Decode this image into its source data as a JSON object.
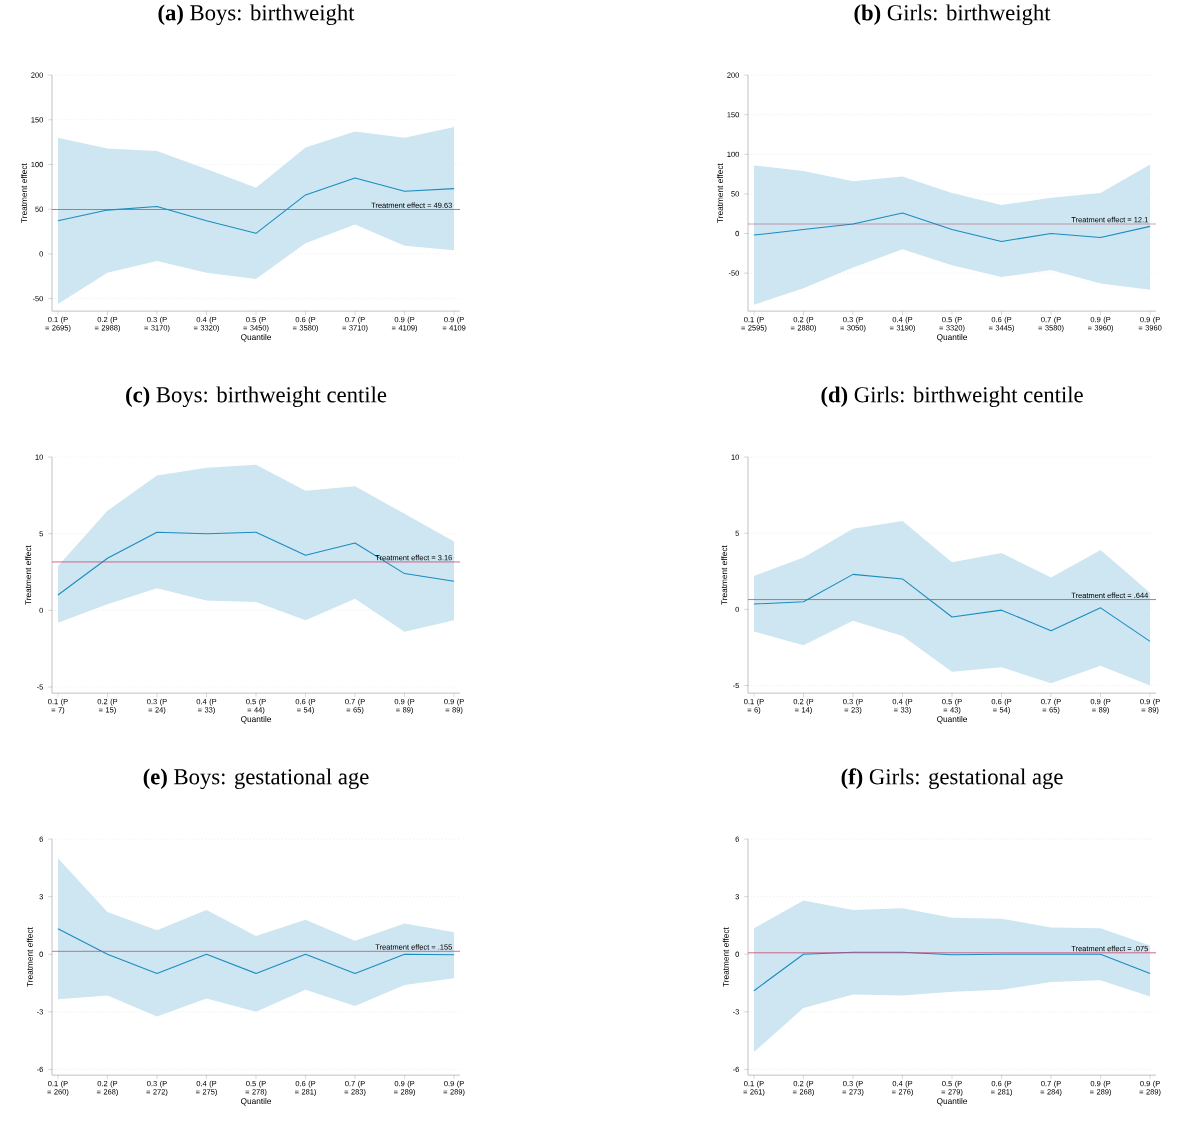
{
  "chart_data": [
    {
      "type": "line",
      "title": "**(a)** Boys: birthweight",
      "xlabel": "Quantile",
      "ylabel": "Treatment effect",
      "grid": "y",
      "ylim": [
        -64,
        200
      ],
      "yticks": [
        -50,
        0,
        50,
        100,
        150,
        200
      ],
      "categories": [
        "0.1 (P = 2695)",
        "0.2 (P = 2988)",
        "0.3 (P = 3170)",
        "0.4 (P = 3320)",
        "0.5 (P = 3450)",
        "0.6 (P = 3580)",
        "0.7 (P = 3710)",
        "0.9 (P = 4109)",
        "0.9 (P = 4109"
      ],
      "series": [
        {
          "color": "#1a8cc0",
          "values": [
            37,
            49,
            53,
            37,
            23,
            66,
            85,
            70,
            73
          ],
          "lower": [
            -56,
            -21,
            -8,
            -21,
            -28,
            12,
            33,
            9,
            4
          ],
          "upper": [
            130,
            118,
            115,
            95,
            74,
            119,
            137,
            130,
            142
          ]
        }
      ],
      "ref_lines": [
        {
          "axis": "y",
          "value": 49.63,
          "label": "Treatment effect = 49.63",
          "color": "#d0406e"
        }
      ]
    },
    {
      "type": "line",
      "title": "**(b)** Girls: birthweight",
      "xlabel": "Quantile",
      "ylabel": "Treatment effect",
      "grid": "y",
      "ylim": [
        -98,
        200
      ],
      "yticks": [
        -50,
        0,
        50,
        100,
        150,
        200
      ],
      "categories": [
        "0.1 (P = 2595)",
        "0.2 (P = 2880)",
        "0.3 (P = 3050)",
        "0.4 (P = 3190)",
        "0.5 (P = 3320)",
        "0.6 (P = 3445)",
        "0.7 (P = 3580)",
        "0.9 (P = 3960)",
        "0.9 (P = 3960"
      ],
      "series": [
        {
          "color": "#1a8cc0",
          "values": [
            -2,
            5,
            12,
            26,
            5,
            -10,
            0,
            -5,
            9
          ],
          "lower": [
            -90,
            -69,
            -43,
            -20,
            -40,
            -55,
            -46,
            -63,
            -71
          ],
          "upper": [
            86,
            79,
            66,
            72,
            51,
            36,
            45,
            51,
            87
          ]
        }
      ],
      "ref_lines": [
        {
          "axis": "y",
          "value": 12.1,
          "label": "Treatment effect = 12.1",
          "color": "#a8405e"
        }
      ]
    },
    {
      "type": "line",
      "title": "**(c)** Boys: birthweight centile",
      "xlabel": "Quantile",
      "ylabel": "Treatment effect",
      "grid": "y",
      "ylim": [
        -5.4,
        10
      ],
      "yticks": [
        -5,
        0,
        5,
        10
      ],
      "categories": [
        "0.1 (P = 7)",
        "0.2 (P = 15)",
        "0.3 (P = 24)",
        "0.4 (P = 33)",
        "0.5 (P = 44)",
        "0.6 (P = 54)",
        "0.7 (P = 65)",
        "0.9 (P = 89)",
        "0.9 (P = 89)"
      ],
      "series": [
        {
          "color": "#1a8cc0",
          "values": [
            1.0,
            3.4,
            5.1,
            5.0,
            5.1,
            3.6,
            4.4,
            2.4,
            1.9
          ],
          "lower": [
            -0.8,
            0.4,
            1.45,
            0.65,
            0.55,
            -0.65,
            0.75,
            -1.4,
            -0.65
          ],
          "upper": [
            2.9,
            6.5,
            8.8,
            9.3,
            9.5,
            7.8,
            8.1,
            6.3,
            4.5
          ]
        }
      ],
      "ref_lines": [
        {
          "axis": "y",
          "value": 3.16,
          "label": "Treatment effect = 3.16",
          "color": "#d0406e"
        }
      ]
    },
    {
      "type": "line",
      "title": "**(d)** Girls: birthweight centile",
      "xlabel": "Quantile",
      "ylabel": "Treatment effect",
      "grid": "y",
      "ylim": [
        -5.5,
        10
      ],
      "yticks": [
        -5,
        0,
        5,
        10
      ],
      "categories": [
        "0.1 (P = 6)",
        "0.2 (P = 14)",
        "0.3 (P = 23)",
        "0.4 (P = 33)",
        "0.5 (P = 43)",
        "0.6 (P = 54)",
        "0.7 (P = 65)",
        "0.9 (P = 89)",
        "0.9 (P = 89)"
      ],
      "series": [
        {
          "color": "#1a8cc0",
          "values": [
            0.35,
            0.5,
            2.3,
            2.0,
            -0.5,
            -0.05,
            -1.4,
            0.1,
            -2.1
          ],
          "lower": [
            -1.45,
            -2.35,
            -0.75,
            -1.75,
            -4.1,
            -3.8,
            -4.85,
            -3.7,
            -5.0
          ],
          "upper": [
            2.2,
            3.4,
            5.3,
            5.8,
            3.1,
            3.7,
            2.1,
            3.9,
            1.1
          ]
        }
      ],
      "ref_lines": [
        {
          "axis": "y",
          "value": 0.644,
          "label": "Treatment effect = .644",
          "color": "#d0406e"
        }
      ]
    },
    {
      "type": "line",
      "title": "**(e)** Boys: gestational age",
      "xlabel": "Quantile",
      "ylabel": "Treatment effect",
      "grid": "y",
      "ylim": [
        -6.3,
        6
      ],
      "yticks": [
        -6,
        -3,
        0,
        3,
        6
      ],
      "categories": [
        "0.1 (P = 260)",
        "0.2 (P = 268)",
        "0.3 (P = 272)",
        "0.4 (P = 275)",
        "0.5 (P = 278)",
        "0.6 (P = 281)",
        "0.7 (P = 283)",
        "0.9 (P = 289)",
        "0.9 (P = 289)"
      ],
      "series": [
        {
          "color": "#1a8cc0",
          "values": [
            1.33,
            0,
            -1,
            0,
            -1,
            0,
            -1,
            0,
            -0.03
          ],
          "lower": [
            -2.35,
            -2.15,
            -3.25,
            -2.3,
            -3.0,
            -1.85,
            -2.7,
            -1.6,
            -1.25
          ],
          "upper": [
            5.0,
            2.2,
            1.25,
            2.3,
            0.95,
            1.8,
            0.7,
            1.6,
            1.15
          ]
        }
      ],
      "ref_lines": [
        {
          "axis": "y",
          "value": 0.155,
          "label": "Treatment effect = .155",
          "color": "#d0406e"
        }
      ]
    },
    {
      "type": "line",
      "title": "**(f)** Girls: gestational age",
      "xlabel": "Quantile",
      "ylabel": "Treatment effect",
      "grid": "y",
      "ylim": [
        -6.3,
        6
      ],
      "yticks": [
        -6,
        -3,
        0,
        3,
        6
      ],
      "categories": [
        "0.1 (P = 261)",
        "0.2 (P = 268)",
        "0.3 (P = 273)",
        "0.4 (P = 276)",
        "0.5 (P = 279)",
        "0.6 (P = 281)",
        "0.7 (P = 284)",
        "0.9 (P = 289)",
        "0.9 (P = 289)"
      ],
      "series": [
        {
          "color": "#1a8cc0",
          "values": [
            -1.9,
            0,
            0.1,
            0.1,
            -0.03,
            0,
            0,
            0,
            -1.0
          ],
          "lower": [
            -5.1,
            -2.8,
            -2.1,
            -2.15,
            -1.95,
            -1.85,
            -1.45,
            -1.35,
            -2.2
          ],
          "upper": [
            1.35,
            2.8,
            2.3,
            2.4,
            1.9,
            1.85,
            1.4,
            1.35,
            0.45
          ]
        }
      ],
      "ref_lines": [
        {
          "axis": "y",
          "value": 0.075,
          "label": "Treatment effect = .075",
          "color": "#d0406e"
        }
      ]
    }
  ]
}
